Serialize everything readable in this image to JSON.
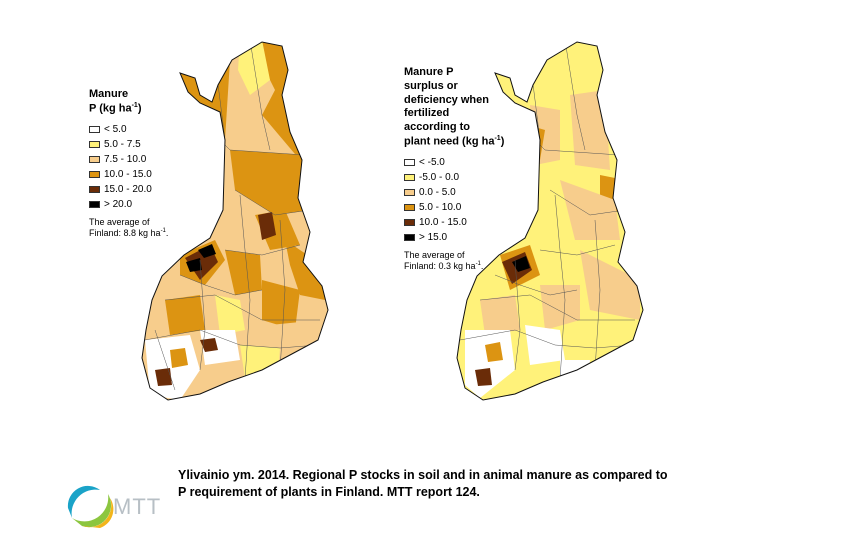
{
  "maps": [
    {
      "id": "manure-p",
      "legend": {
        "title_line1": "Manure",
        "title_line2": "P (kg ha",
        "title_sup": "-1",
        "title_end": ")",
        "items": [
          {
            "label": "< 5.0",
            "color": "#ffffff"
          },
          {
            "label": "5.0 - 7.5",
            "color": "#fff27a"
          },
          {
            "label": "7.5 - 10.0",
            "color": "#f7cd8c"
          },
          {
            "label": "10.0 - 15.0",
            "color": "#dc9412"
          },
          {
            "label": "15.0 - 20.0",
            "color": "#6a2c08"
          },
          {
            "label": "> 20.0",
            "color": "#000000"
          }
        ],
        "note_line1": "The average of",
        "note_line2": "Finland: 8.8 kg ha",
        "note_sup": "-1",
        "note_end": "."
      }
    },
    {
      "id": "manure-p-surplus",
      "legend": {
        "title_lines": [
          "Manure P",
          "surplus or",
          "deficiency when",
          "fertilized",
          "according to"
        ],
        "title_last": "plant need  (kg ha",
        "title_sup": "-1",
        "title_end": ")",
        "items": [
          {
            "label": "< -5.0",
            "color": "#ffffff"
          },
          {
            "label": "-5.0 - 0.0",
            "color": "#fff27a"
          },
          {
            "label": "0.0 - 5.0",
            "color": "#f7cd8c"
          },
          {
            "label": "5.0 - 10.0",
            "color": "#dc9412"
          },
          {
            "label": "10.0 - 15.0",
            "color": "#6a2c08"
          },
          {
            "label": "> 15.0",
            "color": "#000000"
          }
        ],
        "note_line1": "The average of",
        "note_line2": "Finland: 0.3 kg ha",
        "note_sup": "-1",
        "note_end": "."
      }
    }
  ],
  "caption": {
    "line1": "Ylivainio ym. 2014. Regional P stocks in soil and in animal manure as compared to",
    "line2": "P requirement of plants in Finland. MTT report 124."
  },
  "logo": {
    "text": "MTT"
  }
}
